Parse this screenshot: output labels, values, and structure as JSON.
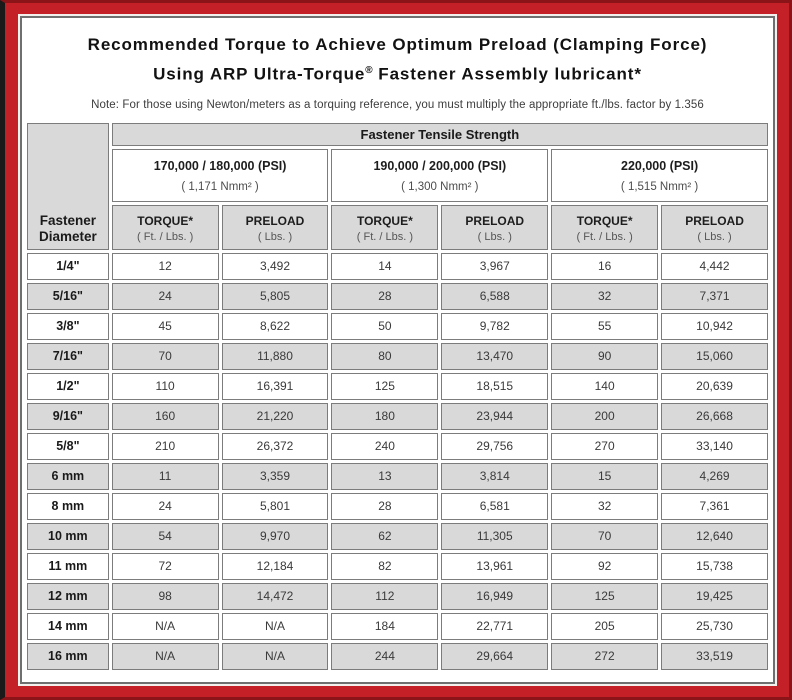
{
  "title": {
    "line1": "Recommended Torque to Achieve Optimum Preload (Clamping Force)",
    "line2_before": "Using ARP Ultra-Torque",
    "line2_reg_mark": "®",
    "line2_after": " Fastener Assembly lubricant*"
  },
  "note": "Note: For those using Newton/meters as a torquing reference, you must multiply the appropriate ft./lbs. factor by 1.356",
  "colors": {
    "frame_red": "#c32028",
    "frame_edge_dark": "#8a1418",
    "frame_edge_black": "#1a1a1a",
    "cell_gray": "#d9d9d9",
    "cell_border": "#7c7c7c"
  },
  "table": {
    "corner_header": "Fastener Diameter",
    "main_header": "Fastener Tensile Strength",
    "strength_groups": [
      {
        "psi": "170,000 / 180,000 (PSI)",
        "nmm": "( 1,171 Nmm² )"
      },
      {
        "psi": "190,000 / 200,000 (PSI)",
        "nmm": "( 1,300 Nmm² )"
      },
      {
        "psi": "220,000 (PSI)",
        "nmm": "( 1,515 Nmm² )"
      }
    ],
    "column_headers": [
      {
        "label": "TORQUE*",
        "unit": "( Ft. / Lbs. )"
      },
      {
        "label": "PRELOAD",
        "unit": "( Lbs. )"
      },
      {
        "label": "TORQUE*",
        "unit": "( Ft. / Lbs. )"
      },
      {
        "label": "PRELOAD",
        "unit": "( Lbs. )"
      },
      {
        "label": "TORQUE*",
        "unit": "( Ft. / Lbs. )"
      },
      {
        "label": "PRELOAD",
        "unit": "( Lbs. )"
      }
    ],
    "rows": [
      {
        "diameter": "1/4\"",
        "values": [
          "12",
          "3,492",
          "14",
          "3,967",
          "16",
          "4,442"
        ]
      },
      {
        "diameter": "5/16\"",
        "values": [
          "24",
          "5,805",
          "28",
          "6,588",
          "32",
          "7,371"
        ]
      },
      {
        "diameter": "3/8\"",
        "values": [
          "45",
          "8,622",
          "50",
          "9,782",
          "55",
          "10,942"
        ]
      },
      {
        "diameter": "7/16\"",
        "values": [
          "70",
          "11,880",
          "80",
          "13,470",
          "90",
          "15,060"
        ]
      },
      {
        "diameter": "1/2\"",
        "values": [
          "110",
          "16,391",
          "125",
          "18,515",
          "140",
          "20,639"
        ]
      },
      {
        "diameter": "9/16\"",
        "values": [
          "160",
          "21,220",
          "180",
          "23,944",
          "200",
          "26,668"
        ]
      },
      {
        "diameter": "5/8\"",
        "values": [
          "210",
          "26,372",
          "240",
          "29,756",
          "270",
          "33,140"
        ]
      },
      {
        "diameter": "6 mm",
        "values": [
          "11",
          "3,359",
          "13",
          "3,814",
          "15",
          "4,269"
        ]
      },
      {
        "diameter": "8 mm",
        "values": [
          "24",
          "5,801",
          "28",
          "6,581",
          "32",
          "7,361"
        ]
      },
      {
        "diameter": "10 mm",
        "values": [
          "54",
          "9,970",
          "62",
          "11,305",
          "70",
          "12,640"
        ]
      },
      {
        "diameter": "11 mm",
        "values": [
          "72",
          "12,184",
          "82",
          "13,961",
          "92",
          "15,738"
        ]
      },
      {
        "diameter": "12 mm",
        "values": [
          "98",
          "14,472",
          "112",
          "16,949",
          "125",
          "19,425"
        ]
      },
      {
        "diameter": "14 mm",
        "values": [
          "N/A",
          "N/A",
          "184",
          "22,771",
          "205",
          "25,730"
        ]
      },
      {
        "diameter": "16 mm",
        "values": [
          "N/A",
          "N/A",
          "244",
          "29,664",
          "272",
          "33,519"
        ]
      }
    ]
  }
}
